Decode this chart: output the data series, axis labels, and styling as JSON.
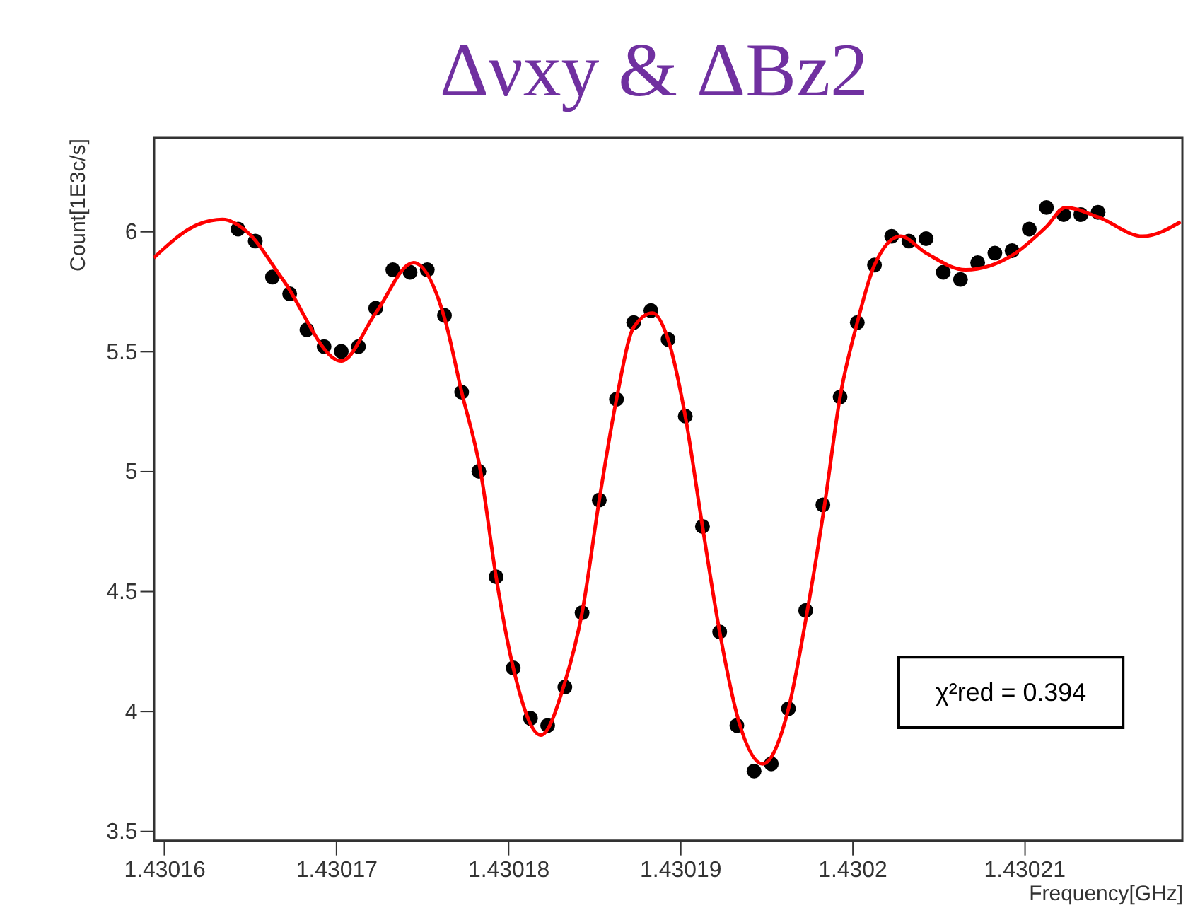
{
  "chart_data": {
    "type": "scatter",
    "title": "Δνxy & ΔBz2",
    "xlabel": "Frequency[GHz]",
    "ylabel": "Count[1E3c/s]",
    "xlim": [
      1.4301594,
      1.4302192
    ],
    "ylim": [
      3.46,
      6.39
    ],
    "xticks": [
      1.43016,
      1.43017,
      1.43018,
      1.43019,
      1.4302,
      1.43021
    ],
    "yticks": [
      3.5,
      4,
      4.5,
      5,
      5.5,
      6
    ],
    "grid": false,
    "annotations": [
      "χ²red = 0.394"
    ],
    "series": [
      {
        "color": "#000000",
        "marker": "circle",
        "x": [
          1.4301643,
          1.4301653,
          1.4301663,
          1.4301673,
          1.4301683,
          1.4301693,
          1.4301703,
          1.4301713,
          1.4301723,
          1.4301733,
          1.4301743,
          1.4301753,
          1.4301763,
          1.4301773,
          1.4301783,
          1.4301793,
          1.4301803,
          1.4301813,
          1.4301823,
          1.4301833,
          1.4301843,
          1.4301853,
          1.4301863,
          1.4301873,
          1.4301883,
          1.4301893,
          1.4301903,
          1.4301913,
          1.4301923,
          1.4301933,
          1.4301943,
          1.4301953,
          1.4301963,
          1.4301973,
          1.4301983,
          1.4301993,
          1.4302003,
          1.4302013,
          1.4302023,
          1.4302033,
          1.4302043,
          1.4302053,
          1.4302063,
          1.4302073,
          1.4302083,
          1.4302093,
          1.4302103,
          1.4302113,
          1.4302123,
          1.4302133,
          1.4302143
        ],
        "values": [
          6.01,
          5.96,
          5.81,
          5.74,
          5.59,
          5.52,
          5.5,
          5.52,
          5.68,
          5.84,
          5.83,
          5.84,
          5.65,
          5.33,
          5.0,
          4.56,
          4.18,
          3.97,
          3.94,
          4.1,
          4.41,
          4.88,
          5.3,
          5.62,
          5.67,
          5.55,
          5.23,
          4.77,
          4.33,
          3.94,
          3.75,
          3.78,
          4.01,
          4.42,
          4.86,
          5.31,
          5.62,
          5.86,
          5.98,
          5.96,
          5.97,
          5.83,
          5.8,
          5.87,
          5.91,
          5.92,
          6.01,
          6.1,
          6.07,
          6.07,
          6.08
        ],
        "errors": [
          0.02,
          0.02,
          0.02,
          0.02,
          0.02,
          0.02,
          0.02,
          0.02,
          0.02,
          0.02,
          0.02,
          0.02,
          0.02,
          0.02,
          0.02,
          0.02,
          0.02,
          0.02,
          0.02,
          0.02,
          0.02,
          0.02,
          0.02,
          0.02,
          0.02,
          0.02,
          0.02,
          0.02,
          0.02,
          0.02,
          0.02,
          0.02,
          0.02,
          0.02,
          0.02,
          0.02,
          0.02,
          0.02,
          0.02,
          0.02,
          0.02,
          0.02,
          0.02,
          0.02,
          0.02,
          0.02,
          0.02,
          0.02,
          0.02,
          0.02,
          0.02
        ]
      },
      {
        "type": "line",
        "color": "#ff0000",
        "marker": "none",
        "x": [
          1.4301594,
          1.430162,
          1.4301634,
          1.4301648,
          1.4301669,
          1.4301703,
          1.4301723,
          1.4301745,
          1.4301763,
          1.4301773,
          1.4301784,
          1.4301793,
          1.4301803,
          1.4301819,
          1.4301833,
          1.4301843,
          1.4301853,
          1.4301863,
          1.4301873,
          1.4301884,
          1.4301893,
          1.4301903,
          1.4301913,
          1.4301923,
          1.4301934,
          1.4301948,
          1.4301963,
          1.4301974,
          1.4301984,
          1.4301993,
          1.4302003,
          1.4302013,
          1.4302028,
          1.4302043,
          1.4302066,
          1.4302093,
          1.4302113,
          1.4302124,
          1.4302143,
          1.4302169,
          1.4302191
        ],
        "values": [
          5.89,
          6.03,
          6.05,
          6.0,
          5.8,
          5.46,
          5.66,
          5.87,
          5.64,
          5.33,
          5.0,
          4.56,
          4.18,
          3.9,
          4.12,
          4.41,
          4.88,
          5.3,
          5.6,
          5.66,
          5.55,
          5.23,
          4.77,
          4.33,
          3.96,
          3.78,
          4.01,
          4.42,
          4.86,
          5.31,
          5.62,
          5.86,
          5.98,
          5.91,
          5.84,
          5.9,
          6.02,
          6.1,
          6.06,
          5.98,
          6.04
        ]
      }
    ]
  }
}
